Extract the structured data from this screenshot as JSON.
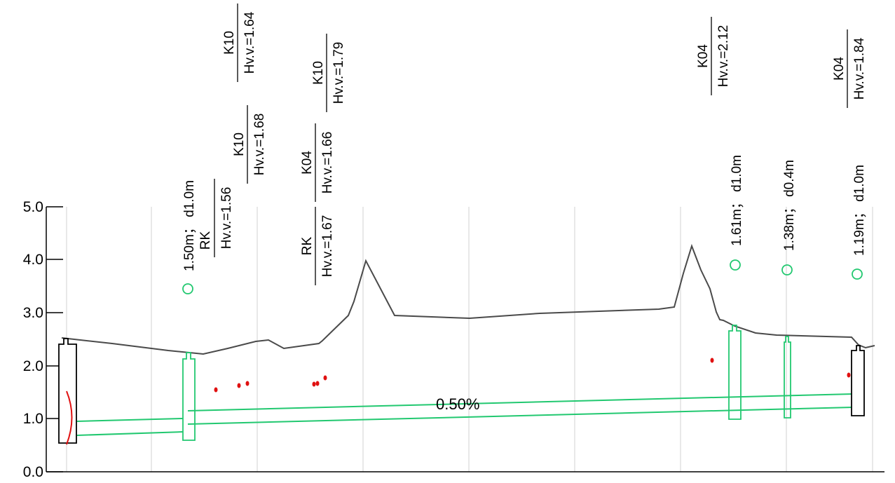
{
  "chart_data": {
    "type": "diagram",
    "y_ticks": [
      "0.0",
      "1.0",
      "2.0",
      "3.0",
      "4.0",
      "5.0"
    ],
    "slope_label": "0.50%",
    "ground_profile": [
      [
        0.07,
        2.52
      ],
      [
        0.15,
        2.43
      ],
      [
        0.23,
        2.22
      ],
      [
        0.25,
        2.28
      ],
      [
        0.29,
        2.45
      ],
      [
        0.31,
        2.48
      ],
      [
        0.33,
        2.32
      ],
      [
        0.39,
        2.4
      ],
      [
        0.42,
        2.93
      ],
      [
        0.45,
        3.97
      ],
      [
        0.48,
        2.93
      ],
      [
        0.58,
        2.88
      ],
      [
        0.69,
        2.98
      ],
      [
        0.82,
        3.06
      ],
      [
        0.83,
        3.25
      ],
      [
        0.85,
        4.25
      ],
      [
        0.87,
        3.35
      ],
      [
        0.88,
        2.86
      ],
      [
        0.92,
        2.59
      ],
      [
        0.97,
        2.52
      ],
      [
        0.99,
        2.32
      ],
      [
        1.0,
        2.37
      ]
    ],
    "tags": [
      {
        "code": "RK",
        "hv": "Hv.v.=1.56"
      },
      {
        "code": "K10",
        "hv": "Hv.v.=1.68"
      },
      {
        "code": "K10",
        "hv": "Hv.v.=1.64"
      },
      {
        "code": "RK",
        "hv": "Hv.v.=1.67"
      },
      {
        "code": "K04",
        "hv": "Hv.v.=1.66"
      },
      {
        "code": "K10",
        "hv": "Hv.v.=1.79"
      },
      {
        "code": "K04",
        "hv": "Hv.v.=2.12"
      },
      {
        "code": "K04",
        "hv": "Hv.v.=1.84"
      }
    ],
    "wells": [
      {
        "label": "1.50m；  d1.0m"
      },
      {
        "label": "1.61m；  d1.0m"
      },
      {
        "label": "1.38m；  d0.4m"
      },
      {
        "label": "1.19m；  d1.0m"
      }
    ],
    "colors": {
      "ground": "#4a4a4a",
      "pipe": "#22c870",
      "point": "#e01010",
      "grid": "#d8d8d8",
      "structure": "#000000"
    }
  }
}
